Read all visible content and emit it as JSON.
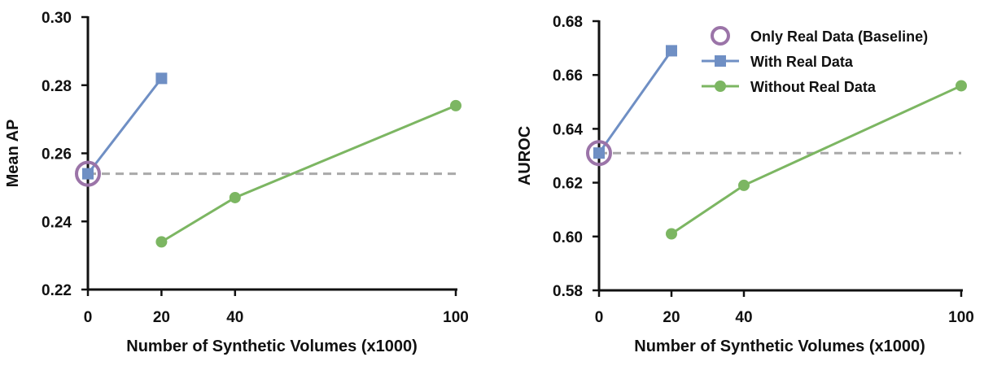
{
  "colors": {
    "baseline_marker": "#9b74a8",
    "with_real": "#6f8fc4",
    "without_real": "#7cb662",
    "dashed_line": "#a9a9a9",
    "axis": "#111111"
  },
  "legend": {
    "placement": "top-right of second chart",
    "items": [
      {
        "label": "Only Real Data (Baseline)",
        "marker": "open-circle",
        "color": "#9b74a8"
      },
      {
        "label": "With Real Data",
        "marker": "square",
        "color": "#6f8fc4"
      },
      {
        "label": "Without Real Data",
        "marker": "circle",
        "color": "#7cb662"
      }
    ]
  },
  "chart_data": [
    {
      "type": "line",
      "xlabel": "Number of Synthetic Volumes (x1000)",
      "ylabel": "Mean AP",
      "xlim": [
        0,
        100
      ],
      "ylim": [
        0.22,
        0.3
      ],
      "x_ticks": [
        0,
        20,
        40,
        100
      ],
      "x_tick_labels": [
        "0",
        "20",
        "40",
        "100"
      ],
      "y_ticks": [
        0.22,
        0.24,
        0.26,
        0.28,
        0.3
      ],
      "y_tick_labels": [
        "0.22",
        "0.24",
        "0.26",
        "0.28",
        "0.30"
      ],
      "baseline": {
        "name": "Only Real Data (Baseline)",
        "x": 0,
        "y": 0.254
      },
      "series": [
        {
          "name": "With Real Data",
          "x": [
            0,
            20
          ],
          "y": [
            0.254,
            0.282
          ]
        },
        {
          "name": "Without Real Data",
          "x": [
            20,
            40,
            100
          ],
          "y": [
            0.234,
            0.247,
            0.274
          ]
        }
      ],
      "grid": false
    },
    {
      "type": "line",
      "xlabel": "Number of Synthetic Volumes (x1000)",
      "ylabel": "AUROC",
      "xlim": [
        0,
        100
      ],
      "ylim": [
        0.58,
        0.68
      ],
      "x_ticks": [
        0,
        20,
        40,
        100
      ],
      "x_tick_labels": [
        "0",
        "20",
        "40",
        "100"
      ],
      "y_ticks": [
        0.58,
        0.6,
        0.62,
        0.64,
        0.66,
        0.68
      ],
      "y_tick_labels": [
        "0.58",
        "0.60",
        "0.62",
        "0.64",
        "0.66",
        "0.68"
      ],
      "baseline": {
        "name": "Only Real Data (Baseline)",
        "x": 0,
        "y": 0.631
      },
      "series": [
        {
          "name": "With Real Data",
          "x": [
            0,
            20
          ],
          "y": [
            0.631,
            0.669
          ]
        },
        {
          "name": "Without Real Data",
          "x": [
            20,
            40,
            100
          ],
          "y": [
            0.601,
            0.619,
            0.656
          ]
        }
      ],
      "grid": false
    }
  ]
}
